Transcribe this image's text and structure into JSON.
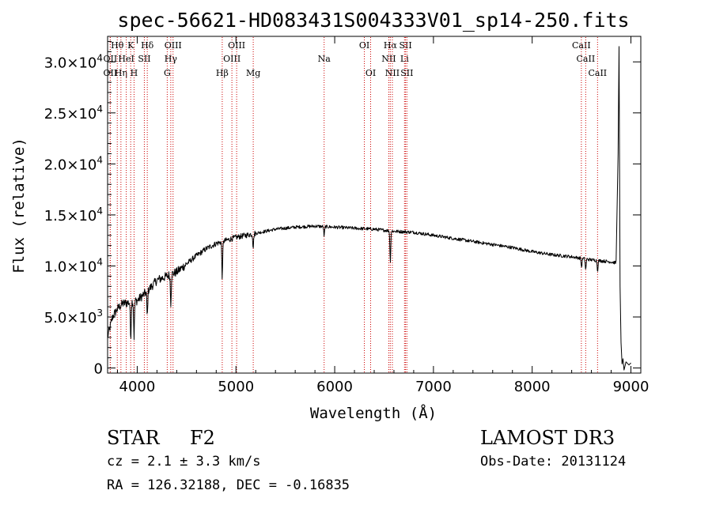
{
  "chart_data": {
    "type": "line",
    "title": "spec-56621-HD083431S004333V01_sp14-250.fits",
    "xlabel": "Wavelength (Å)",
    "ylabel": "Flux (relative)",
    "xlim": [
      3700,
      9100
    ],
    "ylim": [
      -500,
      32500
    ],
    "xticks": [
      4000,
      5000,
      6000,
      7000,
      8000,
      9000
    ],
    "xtick_labels": [
      "4000",
      "5000",
      "6000",
      "7000",
      "8000",
      "9000"
    ],
    "yticks": [
      0,
      5000,
      10000,
      15000,
      20000,
      25000,
      30000
    ],
    "ytick_mantissas": [
      "0",
      "5.0×10",
      "1.0×10",
      "1.5×10",
      "2.0×10",
      "2.5×10",
      "3.0×10"
    ],
    "ytick_exponents": [
      "",
      "3",
      "4",
      "4",
      "4",
      "4",
      "4"
    ],
    "continuum": {
      "x": [
        3700,
        3750,
        3800,
        3850,
        3900,
        3950,
        4000,
        4100,
        4200,
        4300,
        4400,
        4500,
        4600,
        4700,
        4800,
        4900,
        5000,
        5200,
        5400,
        5600,
        5800,
        6000,
        6200,
        6400,
        6600,
        6800,
        7000,
        7200,
        7400,
        7600,
        7800,
        8000,
        8200,
        8400,
        8600,
        8800,
        8850
      ],
      "y": [
        3000,
        5000,
        5800,
        6300,
        6400,
        6500,
        6600,
        7500,
        8600,
        9000,
        9400,
        10200,
        11000,
        11700,
        12200,
        12500,
        12800,
        13200,
        13600,
        13800,
        13900,
        13800,
        13700,
        13600,
        13400,
        13300,
        13000,
        12700,
        12400,
        12100,
        11800,
        11400,
        11100,
        10900,
        10600,
        10400,
        10300
      ]
    },
    "absorption_lines": [
      {
        "x": 3934,
        "depth": 3500
      },
      {
        "x": 3968,
        "depth": 3500
      },
      {
        "x": 4102,
        "depth": 2500
      },
      {
        "x": 4340,
        "depth": 2800
      },
      {
        "x": 4861,
        "depth": 3500
      },
      {
        "x": 5175,
        "depth": 1300
      },
      {
        "x": 5893,
        "depth": 900
      },
      {
        "x": 6563,
        "depth": 3000
      },
      {
        "x": 8500,
        "depth": 900
      },
      {
        "x": 8542,
        "depth": 1100
      },
      {
        "x": 8662,
        "depth": 1000
      }
    ],
    "red_edge": {
      "x": [
        8850,
        8870,
        8880,
        8890,
        8900,
        8910,
        8920,
        8930,
        8950,
        8980,
        9000
      ],
      "y": [
        10500,
        21000,
        31500,
        8000,
        2500,
        400,
        900,
        -200,
        600,
        300,
        500
      ]
    },
    "line_markers": [
      {
        "x": 3798,
        "label": "Hθ",
        "row": 0
      },
      {
        "x": 3727,
        "label": "OII",
        "row": 1
      },
      {
        "x": 3727,
        "label": "OII",
        "row": 2
      },
      {
        "x": 3835,
        "label": "Hη",
        "row": 2
      },
      {
        "x": 3889,
        "label": "HeI",
        "row": 1
      },
      {
        "x": 3934,
        "label": "K",
        "row": 0
      },
      {
        "x": 3968,
        "label": "H",
        "row": 2
      },
      {
        "x": 4072,
        "label": "SII",
        "row": 1
      },
      {
        "x": 4102,
        "label": "Hδ",
        "row": 0
      },
      {
        "x": 4304,
        "label": "G",
        "row": 2
      },
      {
        "x": 4340,
        "label": "Hγ",
        "row": 1
      },
      {
        "x": 4363,
        "label": "OIII",
        "row": 0
      },
      {
        "x": 4861,
        "label": "Hβ",
        "row": 2
      },
      {
        "x": 4959,
        "label": "OIII",
        "row": 1
      },
      {
        "x": 5007,
        "label": "OIII",
        "row": 0
      },
      {
        "x": 5175,
        "label": "Mg",
        "row": 2
      },
      {
        "x": 5893,
        "label": "Na",
        "row": 1
      },
      {
        "x": 6300,
        "label": "OI",
        "row": 0
      },
      {
        "x": 6364,
        "label": "OI",
        "row": 2
      },
      {
        "x": 6548,
        "label": "NII",
        "row": 1
      },
      {
        "x": 6563,
        "label": "Hα",
        "row": 0
      },
      {
        "x": 6584,
        "label": "NII",
        "row": 2
      },
      {
        "x": 6707,
        "label": "Li",
        "row": 1
      },
      {
        "x": 6717,
        "label": "SII",
        "row": 0
      },
      {
        "x": 6731,
        "label": "SII",
        "row": 2
      },
      {
        "x": 8498,
        "label": "CaII",
        "row": 0
      },
      {
        "x": 8542,
        "label": "CaII",
        "row": 1
      },
      {
        "x": 8662,
        "label": "CaII",
        "row": 2
      }
    ]
  },
  "info": {
    "object_class": "STAR",
    "subclass": "F2",
    "survey": "LAMOST DR3",
    "redshift": "cz = 2.1 ± 3.3 km/s",
    "obs_date": "Obs-Date: 20131124",
    "coords": "RA = 126.32188, DEC =  -0.16835"
  },
  "colors": {
    "spectrum": "#000000",
    "marker": "#cc0000",
    "axes": "#000000"
  }
}
